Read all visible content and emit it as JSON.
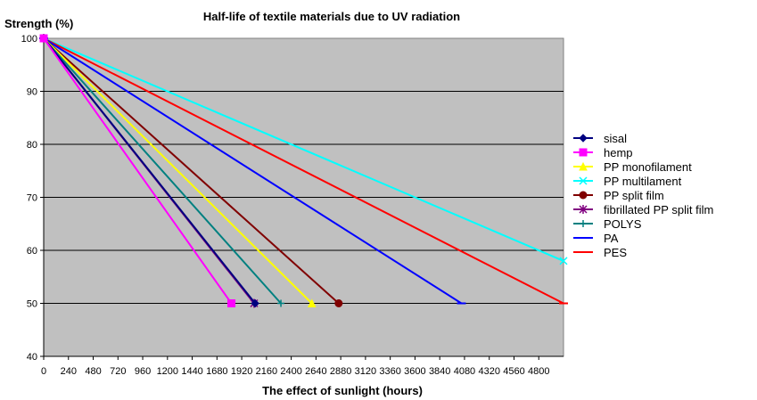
{
  "chart_data": {
    "type": "line",
    "title": "Half-life of textile materials due to UV radiation",
    "xlabel": "The effect of sunlight (hours)",
    "ylabel": "Strength (%)",
    "xlim": [
      0,
      5040
    ],
    "ylim": [
      40,
      100
    ],
    "x_ticks": [
      "0",
      "240",
      "480",
      "720",
      "960",
      "1200",
      "1440",
      "1680",
      "1920",
      "2160",
      "2400",
      "2640",
      "2880",
      "3120",
      "3360",
      "3600",
      "3840",
      "4080",
      "4320",
      "4560",
      "4800"
    ],
    "y_ticks": [
      "40",
      "50",
      "60",
      "70",
      "80",
      "90",
      "100"
    ],
    "grid": "horizontal",
    "legend_position": "right",
    "plot_background": "#c0c0c0",
    "series": [
      {
        "name": "sisal",
        "color": "#000080",
        "marker": "diamond",
        "points": [
          [
            0,
            100
          ],
          [
            2050,
            50
          ]
        ]
      },
      {
        "name": "hemp",
        "color": "#ff00ff",
        "marker": "square",
        "points": [
          [
            0,
            100
          ],
          [
            1820,
            50
          ]
        ]
      },
      {
        "name": "PP monofilament",
        "color": "#ffff00",
        "marker": "triangle",
        "points": [
          [
            0,
            100
          ],
          [
            2600,
            50
          ]
        ]
      },
      {
        "name": "PP multilament",
        "color": "#00ffff",
        "marker": "x",
        "points": [
          [
            0,
            100
          ],
          [
            5040,
            58
          ]
        ]
      },
      {
        "name": "PP split film",
        "color": "#800000",
        "marker": "circle",
        "points": [
          [
            0,
            100
          ],
          [
            2860,
            50
          ]
        ]
      },
      {
        "name": "fibrillated PP split film",
        "color": "#800080",
        "marker": "star",
        "points": [
          [
            0,
            100
          ],
          [
            2040,
            50
          ]
        ]
      },
      {
        "name": "POLYS",
        "color": "#008080",
        "marker": "plus",
        "points": [
          [
            0,
            100
          ],
          [
            2300,
            50
          ]
        ]
      },
      {
        "name": "PA",
        "color": "#0000ff",
        "marker": "dash",
        "points": [
          [
            0,
            100
          ],
          [
            4050,
            50
          ]
        ]
      },
      {
        "name": "PES",
        "color": "#ff0000",
        "marker": "dash",
        "points": [
          [
            0,
            100
          ],
          [
            5040,
            50
          ]
        ]
      }
    ]
  }
}
